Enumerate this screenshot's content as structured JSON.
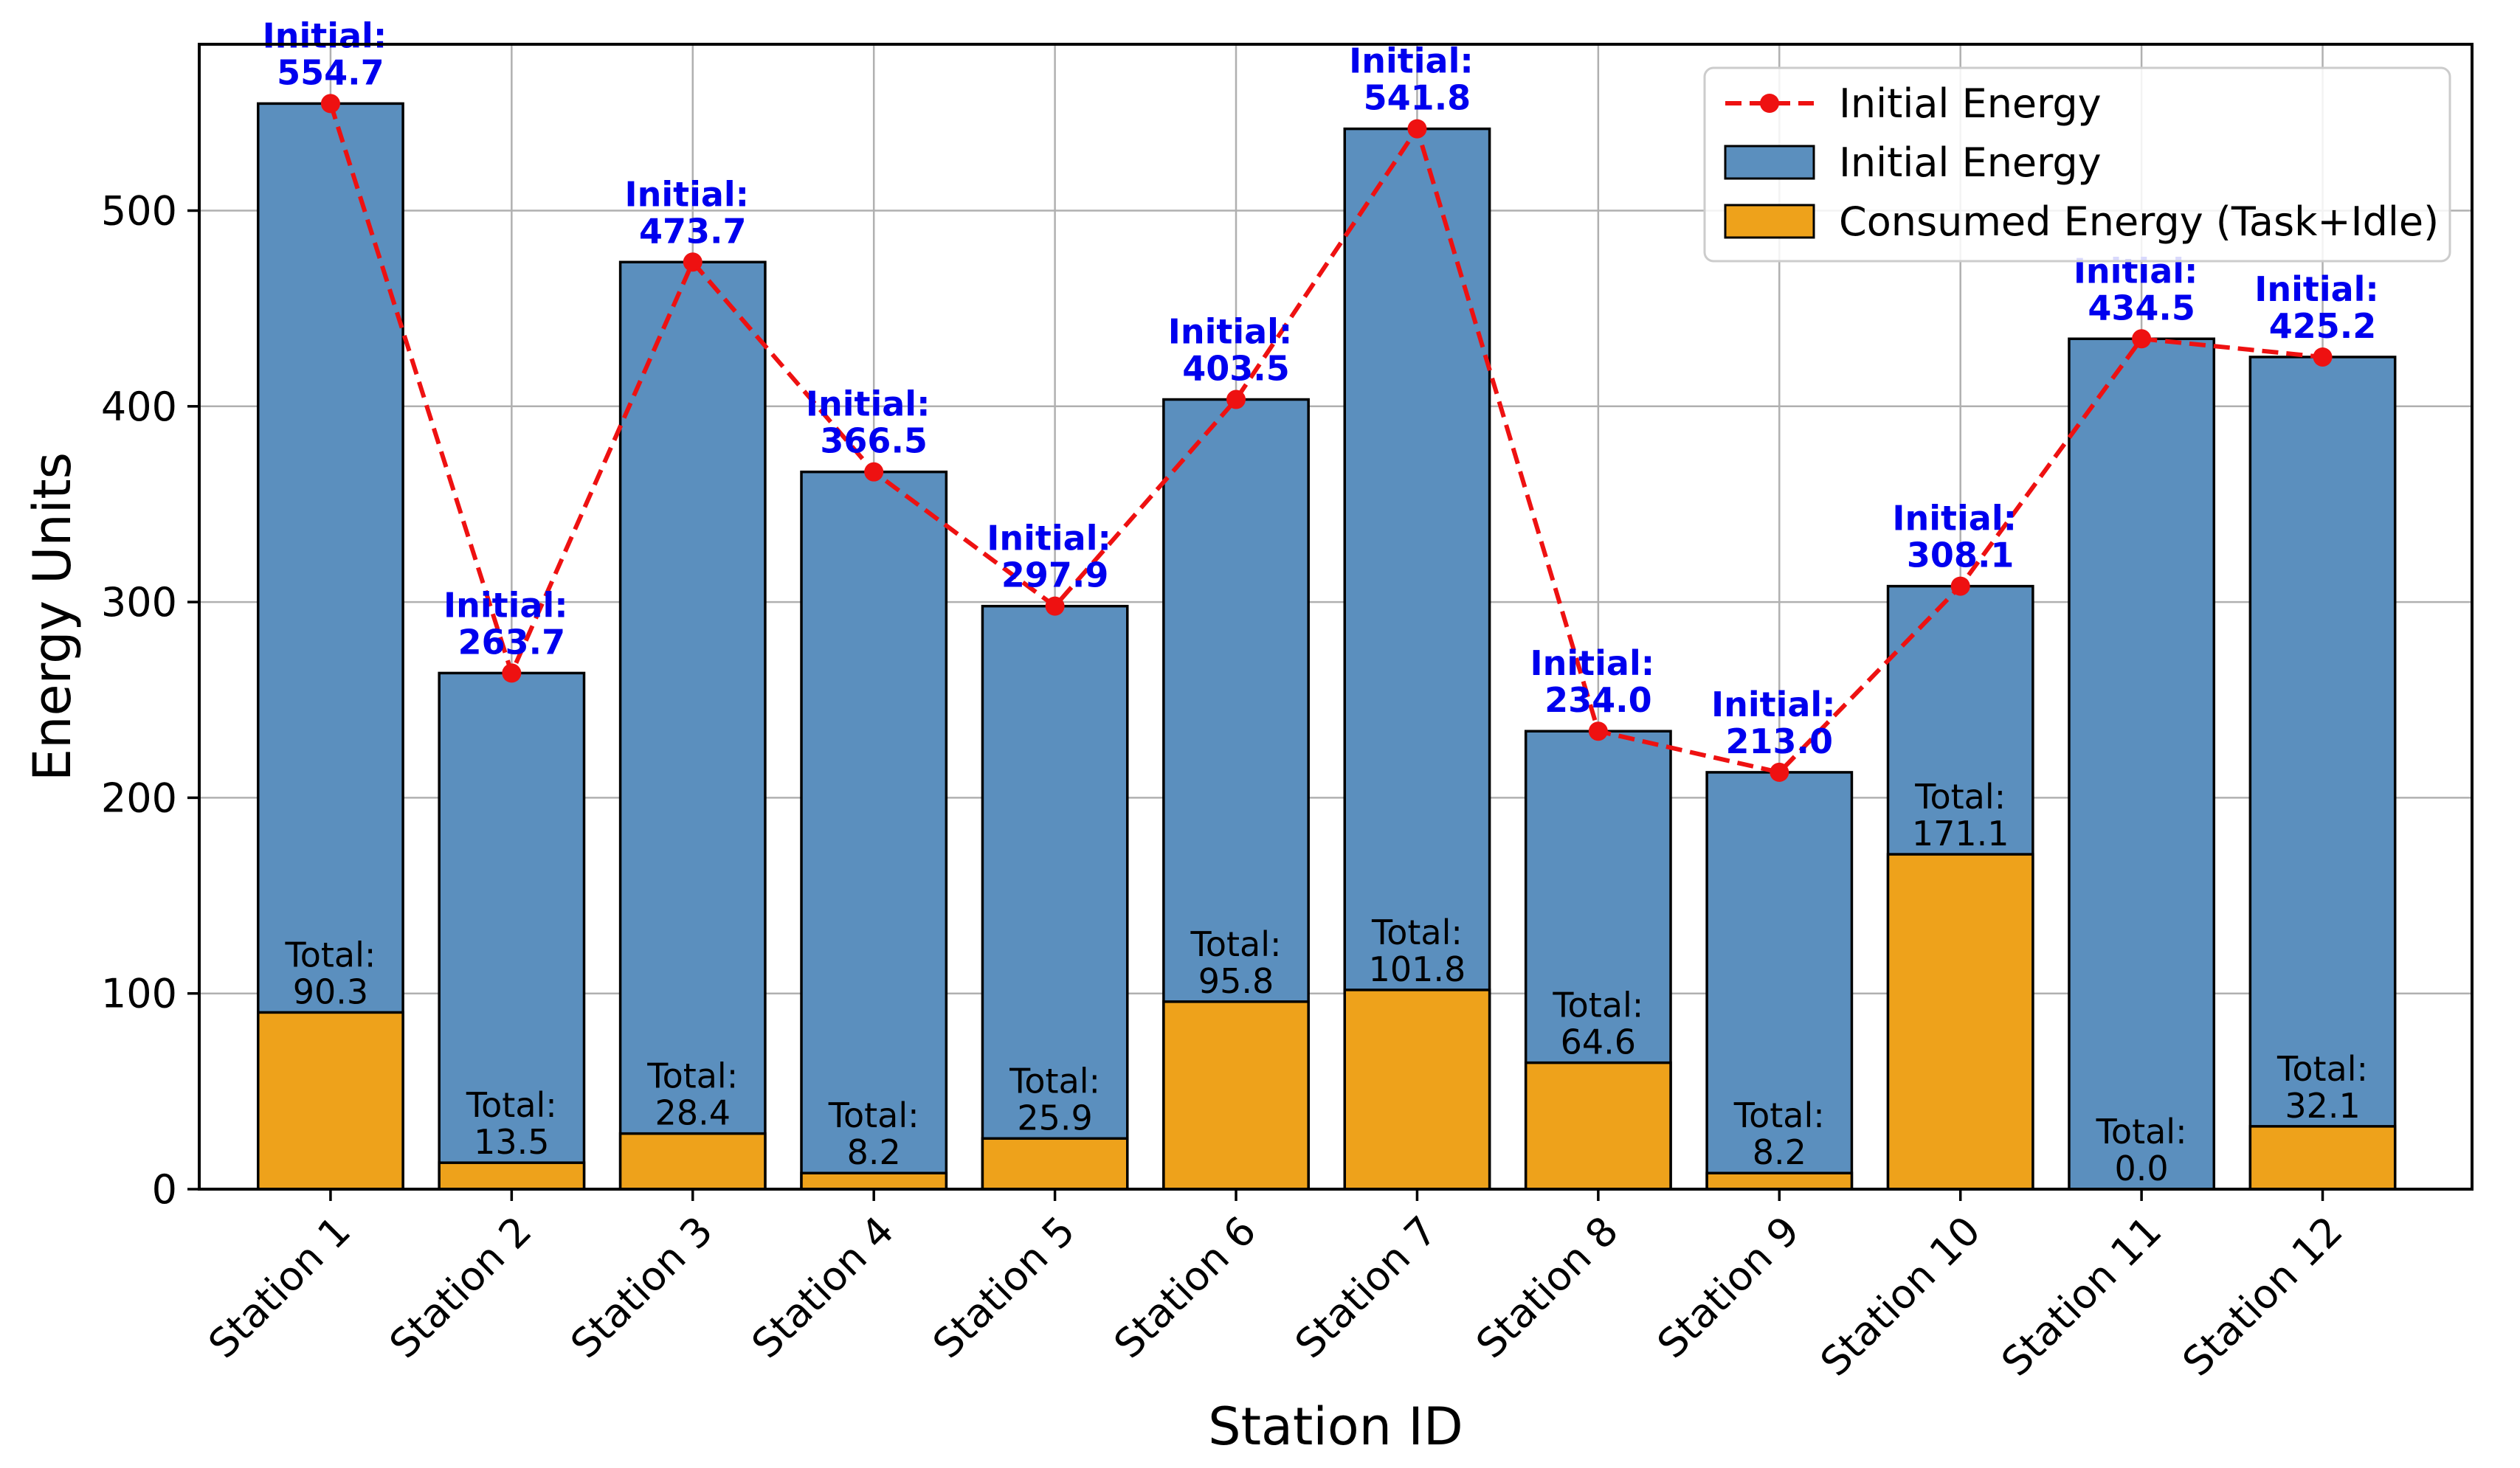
{
  "chart_data": {
    "type": "bar",
    "title": "",
    "xlabel": "Station ID",
    "ylabel": "Energy Units",
    "ylim": [
      0,
      585
    ],
    "yticks": [
      0,
      100,
      200,
      300,
      400,
      500
    ],
    "grid": true,
    "categories": [
      "Station 1",
      "Station 2",
      "Station 3",
      "Station 4",
      "Station 5",
      "Station 6",
      "Station 7",
      "Station 8",
      "Station 9",
      "Station 10",
      "Station 11",
      "Station 12"
    ],
    "series": [
      {
        "name": "Initial Energy",
        "kind": "line",
        "style": "dashed-with-markers",
        "color": "#ee1111",
        "values": [
          554.7,
          263.7,
          473.7,
          366.5,
          297.9,
          403.5,
          541.8,
          234.0,
          213.0,
          308.1,
          434.5,
          425.2
        ]
      },
      {
        "name": "Initial Energy",
        "kind": "bar",
        "color": "#5b8fbe",
        "values": [
          554.7,
          263.7,
          473.7,
          366.5,
          297.9,
          403.5,
          541.8,
          234.0,
          213.0,
          308.1,
          434.5,
          425.2
        ]
      },
      {
        "name": "Consumed Energy (Task+Idle)",
        "kind": "bar",
        "color": "#eea21b",
        "values": [
          90.3,
          13.5,
          28.4,
          8.2,
          25.9,
          95.8,
          101.8,
          64.6,
          8.2,
          171.1,
          0.0,
          32.1
        ]
      }
    ],
    "initial_labels": [
      [
        "Initial:",
        "554.7"
      ],
      [
        "Initial:",
        "263.7"
      ],
      [
        "Initial:",
        "473.7"
      ],
      [
        "Initial:",
        "366.5"
      ],
      [
        "Initial:",
        "297.9"
      ],
      [
        "Initial:",
        "403.5"
      ],
      [
        "Initial:",
        "541.8"
      ],
      [
        "Initial:",
        "234.0"
      ],
      [
        "Initial:",
        "213.0"
      ],
      [
        "Initial:",
        "308.1"
      ],
      [
        "Initial:",
        "434.5"
      ],
      [
        "Initial:",
        "425.2"
      ]
    ],
    "total_labels": [
      [
        "Total:",
        "90.3"
      ],
      [
        "Total:",
        "13.5"
      ],
      [
        "Total:",
        "28.4"
      ],
      [
        "Total:",
        "8.2"
      ],
      [
        "Total:",
        "25.9"
      ],
      [
        "Total:",
        "95.8"
      ],
      [
        "Total:",
        "101.8"
      ],
      [
        "Total:",
        "64.6"
      ],
      [
        "Total:",
        "8.2"
      ],
      [
        "Total:",
        "171.1"
      ],
      [
        "Total:",
        "0.0"
      ],
      [
        "Total:",
        "32.1"
      ]
    ],
    "legend": {
      "position": "top-right",
      "entries": [
        "Initial Energy",
        "Initial Energy",
        "Consumed Energy (Task+Idle)"
      ]
    }
  }
}
